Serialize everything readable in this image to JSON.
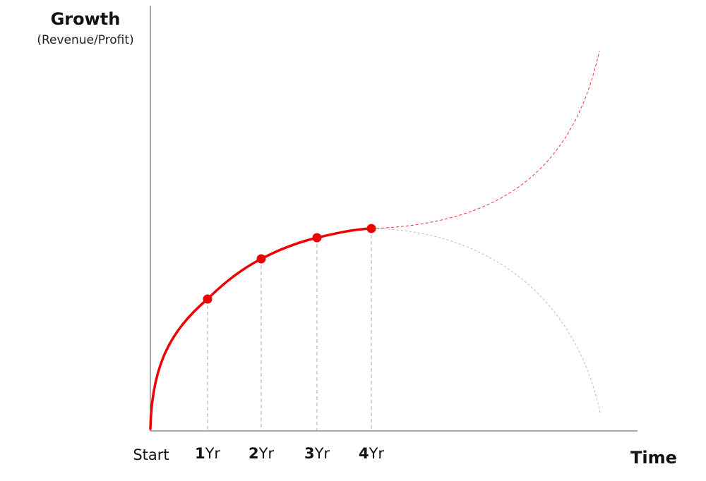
{
  "y_axis": {
    "title": "Growth",
    "subtitle": "(Revenue/Profit)"
  },
  "x_axis": {
    "title": "Time",
    "start_label": "Start",
    "ticks": [
      {
        "num": "1",
        "unit": "Yr"
      },
      {
        "num": "2",
        "unit": "Yr"
      },
      {
        "num": "3",
        "unit": "Yr"
      },
      {
        "num": "4",
        "unit": "Yr"
      }
    ]
  },
  "colors": {
    "main_curve": "#ee0000",
    "up_projection": "#ee3333",
    "down_projection": "#bbbbbb",
    "axis": "#555555",
    "guide": "#aaaaaa"
  }
}
